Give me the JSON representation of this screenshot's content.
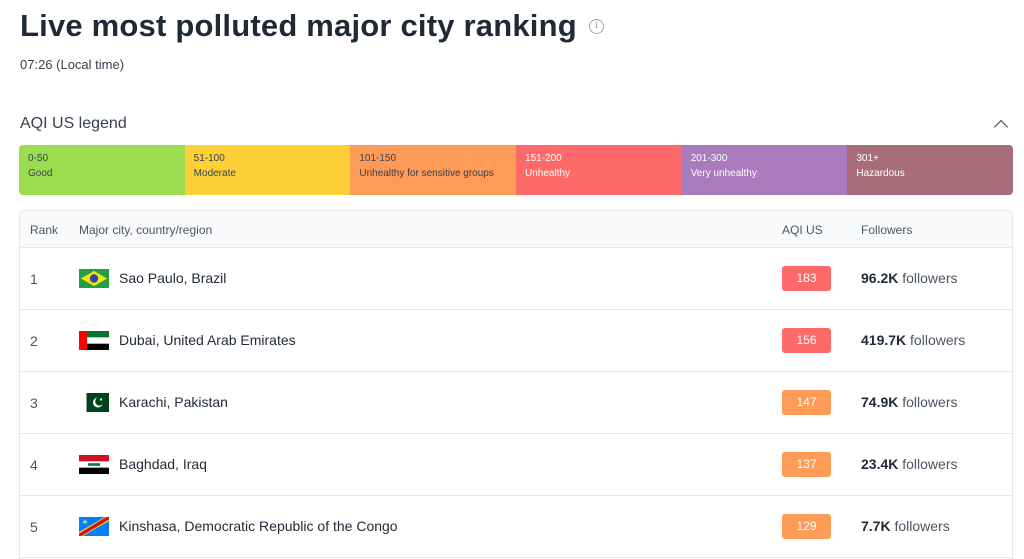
{
  "page": {
    "title": "Live most polluted major city ranking",
    "time": "07:26 (Local time)",
    "info_icon": "info-circle-icon"
  },
  "legend": {
    "title": "AQI US legend",
    "toggle_icon": "chevron-up-icon",
    "segments": [
      {
        "range": "0-50",
        "label": "Good",
        "color": "#9ade4f"
      },
      {
        "range": "51-100",
        "label": "Moderate",
        "color": "#fdd037"
      },
      {
        "range": "101-150",
        "label": "Unhealthy for sensitive groups",
        "color": "#fe9b56"
      },
      {
        "range": "151-200",
        "label": "Unhealthy",
        "color": "#fe6a69"
      },
      {
        "range": "201-300",
        "label": "Very unhealthy",
        "color": "#a97abc"
      },
      {
        "range": "301+",
        "label": "Hazardous",
        "color": "#a86d7d"
      }
    ]
  },
  "table": {
    "headers": {
      "rank": "Rank",
      "city": "Major city, country/region",
      "aqi": "AQI US",
      "followers": "Followers"
    },
    "followers_suffix": " followers",
    "rows": [
      {
        "rank": "1",
        "city": "Sao Paulo, Brazil",
        "aqi": "183",
        "aqi_color": "#fe6a69",
        "followers": "96.2K",
        "flag": "flag-brazil-icon"
      },
      {
        "rank": "2",
        "city": "Dubai, United Arab Emirates",
        "aqi": "156",
        "aqi_color": "#fe6a69",
        "followers": "419.7K",
        "flag": "flag-uae-icon"
      },
      {
        "rank": "3",
        "city": "Karachi, Pakistan",
        "aqi": "147",
        "aqi_color": "#fe9b56",
        "followers": "74.9K",
        "flag": "flag-pakistan-icon"
      },
      {
        "rank": "4",
        "city": "Baghdad, Iraq",
        "aqi": "137",
        "aqi_color": "#fe9b56",
        "followers": "23.4K",
        "flag": "flag-iraq-icon"
      },
      {
        "rank": "5",
        "city": "Kinshasa, Democratic Republic of the Congo",
        "aqi": "129",
        "aqi_color": "#fe9b56",
        "followers": "7.7K",
        "flag": "flag-drc-icon"
      }
    ]
  }
}
